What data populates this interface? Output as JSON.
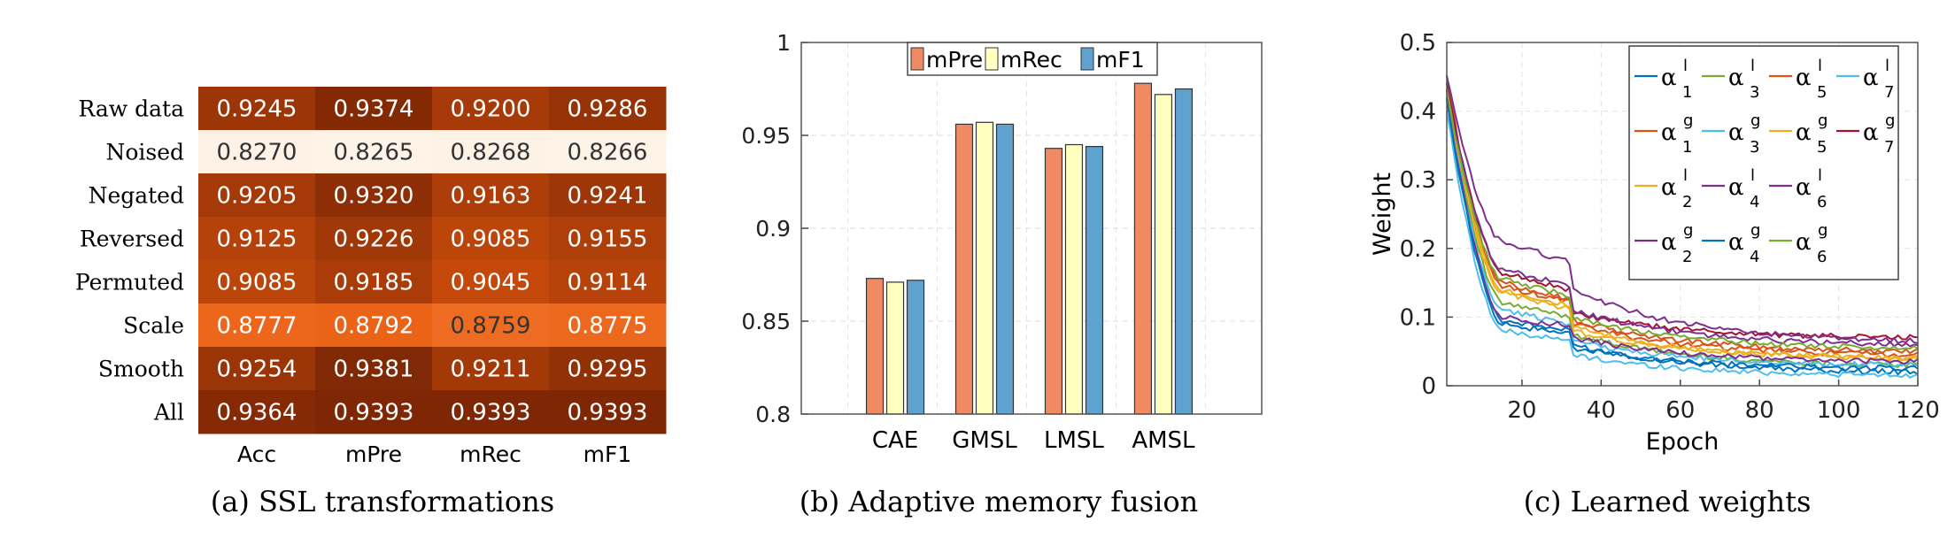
{
  "chart_data": [
    {
      "type": "heatmap",
      "caption": "(a) SSL transformations",
      "columns": [
        "Acc",
        "mPre",
        "mRec",
        "mF1"
      ],
      "rows": [
        {
          "label": "Raw data",
          "values": [
            "0.9245",
            "0.9374",
            "0.9200",
            "0.9286"
          ]
        },
        {
          "label": "Noised",
          "values": [
            "0.8270",
            "0.8265",
            "0.8268",
            "0.8266"
          ]
        },
        {
          "label": "Negated",
          "values": [
            "0.9205",
            "0.9320",
            "0.9163",
            "0.9241"
          ]
        },
        {
          "label": "Reversed",
          "values": [
            "0.9125",
            "0.9226",
            "0.9085",
            "0.9155"
          ]
        },
        {
          "label": "Permuted",
          "values": [
            "0.9085",
            "0.9185",
            "0.9045",
            "0.9114"
          ]
        },
        {
          "label": "Scale",
          "values": [
            "0.8777",
            "0.8792",
            "0.8759",
            "0.8775"
          ]
        },
        {
          "label": "Smooth",
          "values": [
            "0.9254",
            "0.9381",
            "0.9211",
            "0.9295"
          ]
        },
        {
          "label": "All",
          "values": [
            "0.9364",
            "0.9393",
            "0.9393",
            "0.9393"
          ]
        }
      ],
      "colormap": [
        "#fdf3e7",
        "#fca560",
        "#e8590c",
        "#b8430a",
        "#7f2704"
      ]
    },
    {
      "type": "bar",
      "caption": "(b) Adaptive memory fusion",
      "categories": [
        "CAE",
        "GMSL",
        "LMSL",
        "AMSL"
      ],
      "series": [
        {
          "name": "mPre",
          "color": "#ef8a62",
          "values": [
            0.873,
            0.956,
            0.943,
            0.978
          ]
        },
        {
          "name": "mRec",
          "color": "#ffffc0",
          "values": [
            0.871,
            0.957,
            0.945,
            0.972
          ]
        },
        {
          "name": "mF1",
          "color": "#5fa2d0",
          "values": [
            0.872,
            0.956,
            0.944,
            0.975
          ]
        }
      ],
      "ylim": [
        0.8,
        1.0
      ],
      "yticks": [
        "0.8",
        "0.85",
        "0.9",
        "0.95",
        "1"
      ],
      "grid": true,
      "legend": "top"
    },
    {
      "type": "line",
      "caption": "(c) Learned weights",
      "xlabel": "Epoch",
      "ylabel": "Weight",
      "xlim": [
        1,
        120
      ],
      "ylim": [
        0,
        0.5
      ],
      "xticks": [
        "20",
        "40",
        "60",
        "80",
        "100",
        "120"
      ],
      "yticks": [
        "0",
        "0.1",
        "0.2",
        "0.3",
        "0.4",
        "0.5"
      ],
      "grid": true,
      "legend": "top-right",
      "legend_layout": [
        [
          "α_1^l",
          "α_3^l",
          "α_5^l",
          "α_7^l"
        ],
        [
          "α_1^g",
          "α_3^g",
          "α_5^g",
          "α_7^g"
        ],
        [
          "α_2^l",
          "α_4^l",
          "α_6^l"
        ],
        [
          "α_2^g",
          "α_4^g",
          "α_6^g"
        ]
      ],
      "series": [
        {
          "sym": "α",
          "sub": "1",
          "sup": "l",
          "color": "#0072bd",
          "start": 0.45,
          "v15": 0.095,
          "v33": 0.06,
          "end": 0.02
        },
        {
          "sym": "α",
          "sub": "3",
          "sup": "l",
          "color": "#77ac30",
          "start": 0.43,
          "v15": 0.12,
          "v33": 0.075,
          "end": 0.03
        },
        {
          "sym": "α",
          "sub": "5",
          "sup": "l",
          "color": "#d95319",
          "start": 0.43,
          "v15": 0.145,
          "v33": 0.09,
          "end": 0.045
        },
        {
          "sym": "α",
          "sub": "7",
          "sup": "l",
          "color": "#4dbeee",
          "start": 0.4,
          "v15": 0.08,
          "v33": 0.045,
          "end": 0.015
        },
        {
          "sym": "α",
          "sub": "1",
          "sup": "g",
          "color": "#d95319",
          "start": 0.45,
          "v15": 0.15,
          "v33": 0.095,
          "end": 0.05
        },
        {
          "sym": "α",
          "sub": "3",
          "sup": "g",
          "color": "#4dbeee",
          "start": 0.42,
          "v15": 0.11,
          "v33": 0.065,
          "end": 0.03
        },
        {
          "sym": "α",
          "sub": "5",
          "sup": "g",
          "color": "#edb120",
          "start": 0.44,
          "v15": 0.14,
          "v33": 0.085,
          "end": 0.04
        },
        {
          "sym": "α",
          "sub": "7",
          "sup": "g",
          "color": "#a2142f",
          "start": 0.44,
          "v15": 0.165,
          "v33": 0.105,
          "end": 0.07
        },
        {
          "sym": "α",
          "sub": "2",
          "sup": "l",
          "color": "#edb120",
          "start": 0.43,
          "v15": 0.135,
          "v33": 0.08,
          "end": 0.04
        },
        {
          "sym": "α",
          "sub": "4",
          "sup": "l",
          "color": "#7e2f8e",
          "start": 0.42,
          "v15": 0.1,
          "v33": 0.07,
          "end": 0.035
        },
        {
          "sym": "α",
          "sub": "6",
          "sup": "l",
          "color": "#7e2f8e",
          "start": 0.45,
          "v15": 0.21,
          "v33": 0.14,
          "end": 0.065
        },
        {
          "sym": "α",
          "sub": "2",
          "sup": "g",
          "color": "#7e2f8e",
          "start": 0.43,
          "v15": 0.17,
          "v33": 0.11,
          "end": 0.06
        },
        {
          "sym": "α",
          "sub": "4",
          "sup": "g",
          "color": "#0072bd",
          "start": 0.42,
          "v15": 0.09,
          "v33": 0.055,
          "end": 0.025
        },
        {
          "sym": "α",
          "sub": "6",
          "sup": "g",
          "color": "#77ac30",
          "start": 0.43,
          "v15": 0.155,
          "v33": 0.1,
          "end": 0.055
        }
      ]
    }
  ]
}
